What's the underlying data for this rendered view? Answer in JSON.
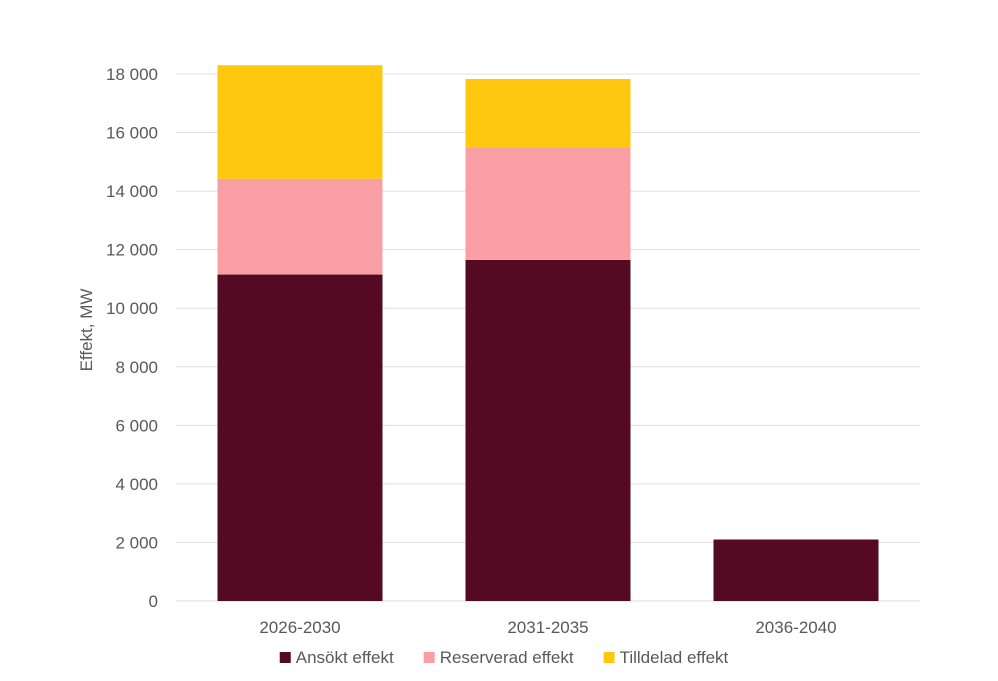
{
  "chart_data": {
    "type": "bar",
    "stacked": true,
    "categories": [
      "2026-2030",
      "2031-2035",
      "2036-2040"
    ],
    "series": [
      {
        "name": "Ansökt effekt",
        "color": "#540A22",
        "values": [
          11150,
          11650,
          2100
        ]
      },
      {
        "name": "Reserverad effekt",
        "color": "#F99FA4",
        "values": [
          3270,
          3850,
          0
        ]
      },
      {
        "name": "Tilldelad effekt",
        "color": "#FEC80F",
        "values": [
          3880,
          2330,
          0
        ]
      }
    ],
    "title": "",
    "xlabel": "",
    "ylabel": "Effekt, MW",
    "ylim": [
      0,
      18000
    ],
    "yticks": [
      0,
      2000,
      4000,
      6000,
      8000,
      10000,
      12000,
      14000,
      16000,
      18000
    ],
    "ytick_labels": [
      "0",
      "2 000",
      "4 000",
      "6 000",
      "8 000",
      "10 000",
      "12 000",
      "14 000",
      "16 000",
      "18 000"
    ],
    "grid": true,
    "legend_position": "bottom"
  }
}
